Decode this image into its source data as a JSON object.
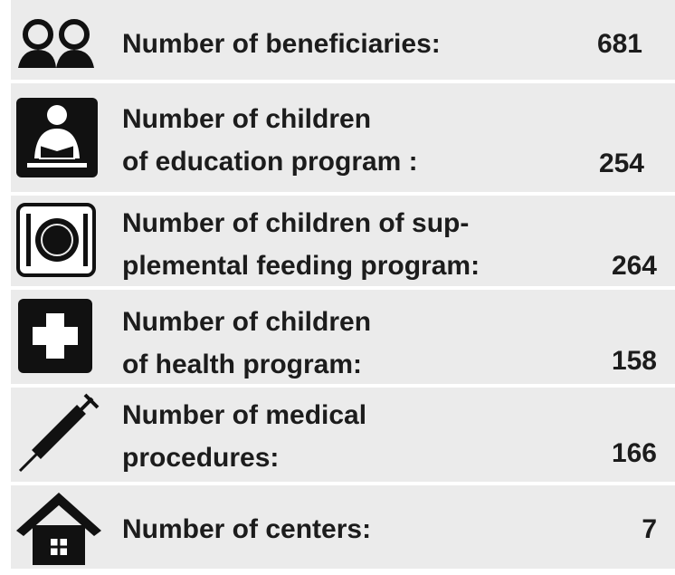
{
  "items": [
    {
      "lines": [
        "Number of beneficiaries:"
      ],
      "value": 681
    },
    {
      "lines": [
        "Number of children",
        "of education program :"
      ],
      "value": 254
    },
    {
      "lines": [
        "Number of children of sup-",
        "plemental feeding program:"
      ],
      "value": 264
    },
    {
      "lines": [
        "Number of children",
        "of health program:"
      ],
      "value": 158
    },
    {
      "lines": [
        "Number of medical",
        "procedures:"
      ],
      "value": 166
    },
    {
      "lines": [
        "Number of centers:"
      ],
      "value": 7
    }
  ]
}
